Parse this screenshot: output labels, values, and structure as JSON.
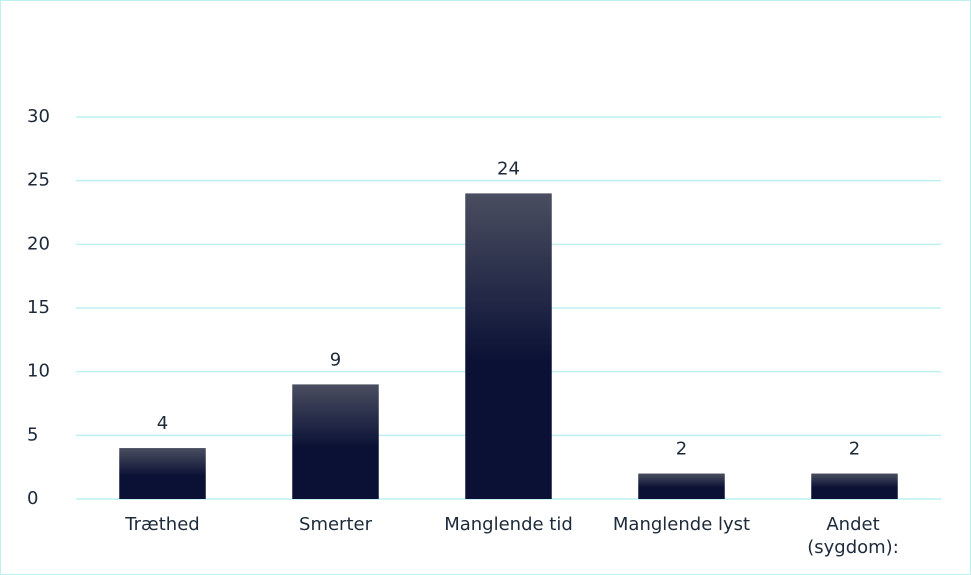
{
  "chart_data": {
    "type": "bar",
    "categories": [
      "Træthed",
      "Smerter",
      "Manglende tid",
      "Manglende lyst",
      "Andet (sygdom):"
    ],
    "values": [
      4,
      9,
      24,
      2,
      2
    ],
    "color": "#0a1135",
    "ylim": [
      0,
      30
    ],
    "yticks": [
      0,
      5,
      10,
      15,
      20,
      25,
      30
    ],
    "grid": true
  }
}
